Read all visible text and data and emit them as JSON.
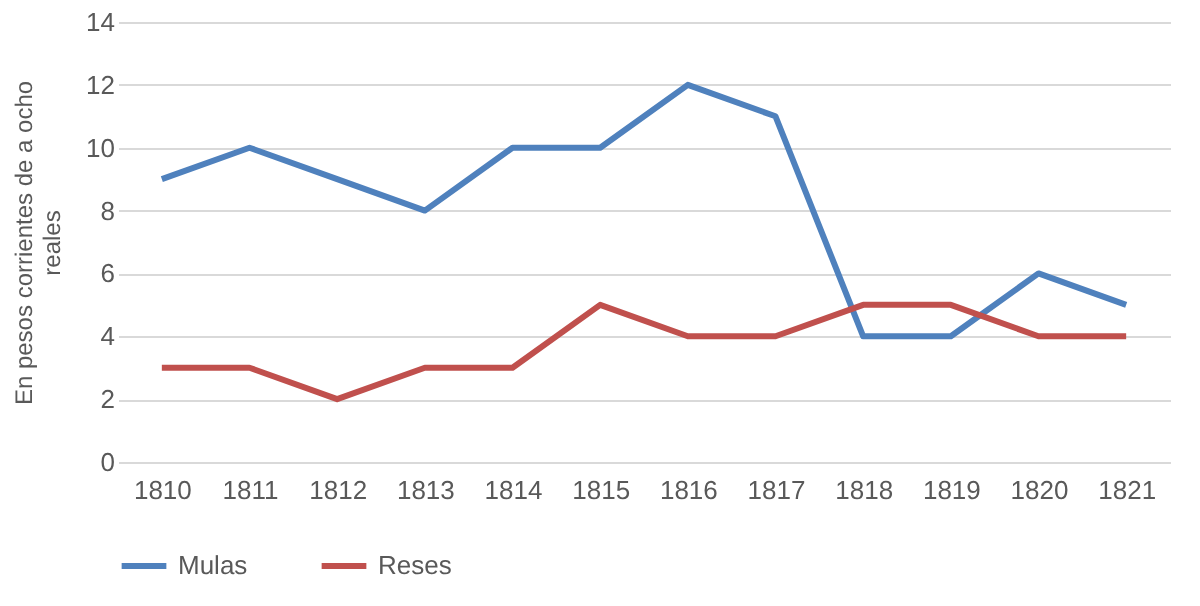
{
  "chart_data": {
    "type": "line",
    "ylabel": "En pesos corrientes de a ocho reales",
    "categories": [
      "1810",
      "1811",
      "1812",
      "1813",
      "1814",
      "1815",
      "1816",
      "1817",
      "1818",
      "1819",
      "1820",
      "1821"
    ],
    "series": [
      {
        "name": "Mulas",
        "color": "#4f81bd",
        "values": [
          9,
          10,
          9,
          8,
          10,
          10,
          12,
          11,
          4,
          4,
          6,
          5
        ]
      },
      {
        "name": "Reses",
        "color": "#c0504d",
        "values": [
          3,
          3,
          2,
          3,
          3,
          5,
          4,
          4,
          5,
          5,
          4,
          4
        ]
      }
    ],
    "ylim": [
      0,
      14
    ],
    "yticks": [
      0,
      2,
      4,
      6,
      8,
      10,
      12,
      14
    ],
    "grid": "y",
    "legend": "bottom",
    "marker": "none",
    "line_style": "solid"
  }
}
